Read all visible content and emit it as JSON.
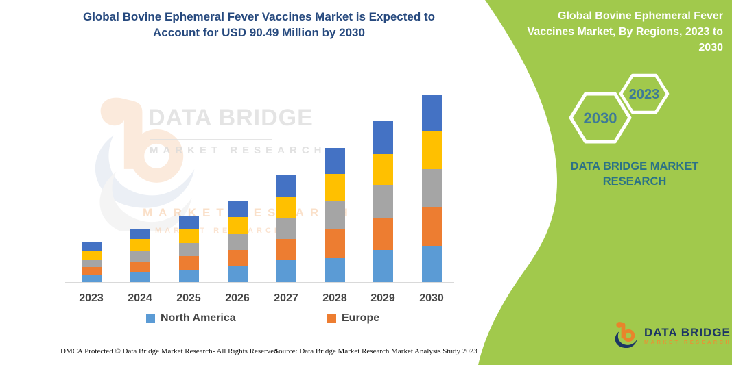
{
  "main": {
    "title": "Global Bovine Ephemeral Fever Vaccines Market is Expected to Account for USD 90.49 Million by 2030"
  },
  "right_panel": {
    "title": "Global Bovine Ephemeral Fever Vaccines Market, By Regions, 2023 to 2030",
    "hexagons": [
      {
        "label": "2023"
      },
      {
        "label": "2030"
      }
    ],
    "brand": "DATA BRIDGE MARKET RESEARCH"
  },
  "watermark": {
    "brand": "DATA BRIDGE",
    "sub": "MARKET RESEARCH"
  },
  "chart_data": {
    "type": "bar",
    "stacked": true,
    "title": "Global Bovine Ephemeral Fever Vaccines Market, By Regions, 2023 to 2030",
    "unit": "USD Million",
    "categories": [
      "2023",
      "2024",
      "2025",
      "2026",
      "2027",
      "2028",
      "2029",
      "2030"
    ],
    "series": [
      {
        "name": "North America",
        "color": "#5B9BD5",
        "in_legend": true,
        "values": [
          3.6,
          5.1,
          6.3,
          7.9,
          10.7,
          12.0,
          15.7,
          17.8
        ]
      },
      {
        "name": "Europe",
        "color": "#ED7D31",
        "in_legend": true,
        "values": [
          4.1,
          4.8,
          6.5,
          7.9,
          10.4,
          13.8,
          15.6,
          18.5
        ]
      },
      {
        "name": "Unlabeled (gray)",
        "color": "#A5A5A5",
        "in_legend": false,
        "values": [
          3.6,
          5.6,
          6.3,
          7.9,
          9.9,
          13.8,
          15.9,
          18.4
        ]
      },
      {
        "name": "Unlabeled (yellow)",
        "color": "#FFC000",
        "in_legend": false,
        "values": [
          3.8,
          5.4,
          6.9,
          7.9,
          10.4,
          12.7,
          14.8,
          18.1
        ]
      },
      {
        "name": "Unlabeled (dark blue)",
        "color": "#4472C4",
        "in_legend": false,
        "values": [
          4.6,
          5.1,
          6.3,
          7.9,
          10.6,
          12.5,
          15.9,
          17.7
        ]
      }
    ],
    "totals": [
      19.7,
      26.0,
      32.3,
      39.5,
      52.0,
      64.8,
      77.9,
      90.5
    ],
    "ylim": [
      0,
      95
    ],
    "grid": false,
    "axis_labels_visible": false,
    "legend_position": "bottom"
  },
  "footer": {
    "dmca": "DMCA Protected © Data Bridge Market Research-  All Rights Reserved.",
    "source": "Source: Data Bridge Market Research  Market Analysis Study 2023"
  },
  "footer_logo": {
    "brand": "DATA BRIDGE",
    "sub": "MARKET RESEARCH"
  },
  "colors": {
    "panel_green": "#A1C94C",
    "title_navy": "#26497E",
    "brand_teal": "#2B7286",
    "hexagon_year": "#3E7A96",
    "axis_line": "#D9D9D9"
  }
}
